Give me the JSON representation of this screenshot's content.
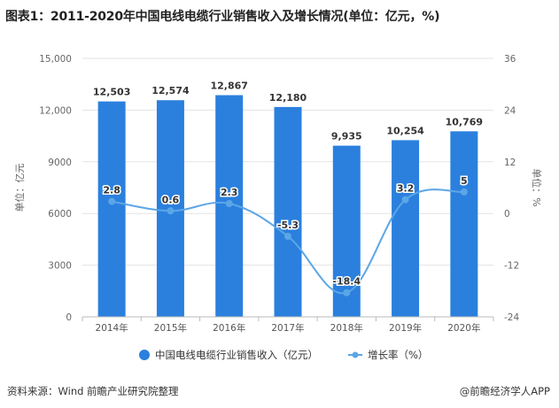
{
  "title": "图表1：2011-2020年中国电线电缆行业销售收入及增长情况(单位：亿元，%)",
  "source": "资料来源：Wind 前瞻产业研究院整理",
  "brand": "@前瞻经济学人APP",
  "colors": {
    "bar": "#2b80de",
    "line": "#5ba6e6",
    "grid": "#e3e3e3",
    "axis": "#bbbbbb"
  },
  "chart_data": {
    "type": "bar",
    "categories": [
      "2014年",
      "2015年",
      "2016年",
      "2017年",
      "2018年",
      "2019年",
      "2020年"
    ],
    "series": [
      {
        "name": "中国电线电缆行业销售收入（亿元）",
        "type": "bar",
        "axis": "left",
        "values": [
          12503,
          12574,
          12867,
          12180,
          9935,
          10254,
          10769
        ],
        "labels": [
          "12,503",
          "12,574",
          "12,867",
          "12,180",
          "9,935",
          "10,254",
          "10,769"
        ]
      },
      {
        "name": "增长率（%）",
        "type": "line",
        "axis": "right",
        "values": [
          2.8,
          0.6,
          2.3,
          -5.3,
          -18.4,
          3.2,
          5
        ],
        "labels": [
          "2.8",
          "0.6",
          "2.3",
          "-5.3",
          "-18.4",
          "3.2",
          "5"
        ]
      }
    ],
    "ylabel_left": "单位：亿元",
    "ylabel_right": "单位：%",
    "ylim_left": [
      0,
      15000
    ],
    "ylim_right": [
      -24,
      36
    ],
    "yticks_left": [
      "0",
      "3000",
      "6000",
      "9000",
      "12,000",
      "15,000"
    ],
    "yticks_right": [
      "-24",
      "-12",
      "0",
      "12",
      "24",
      "36"
    ],
    "legend": {
      "position": "bottom",
      "items": [
        "中国电线电缆行业销售收入（亿元）",
        "增长率（%）"
      ]
    },
    "grid": true
  }
}
